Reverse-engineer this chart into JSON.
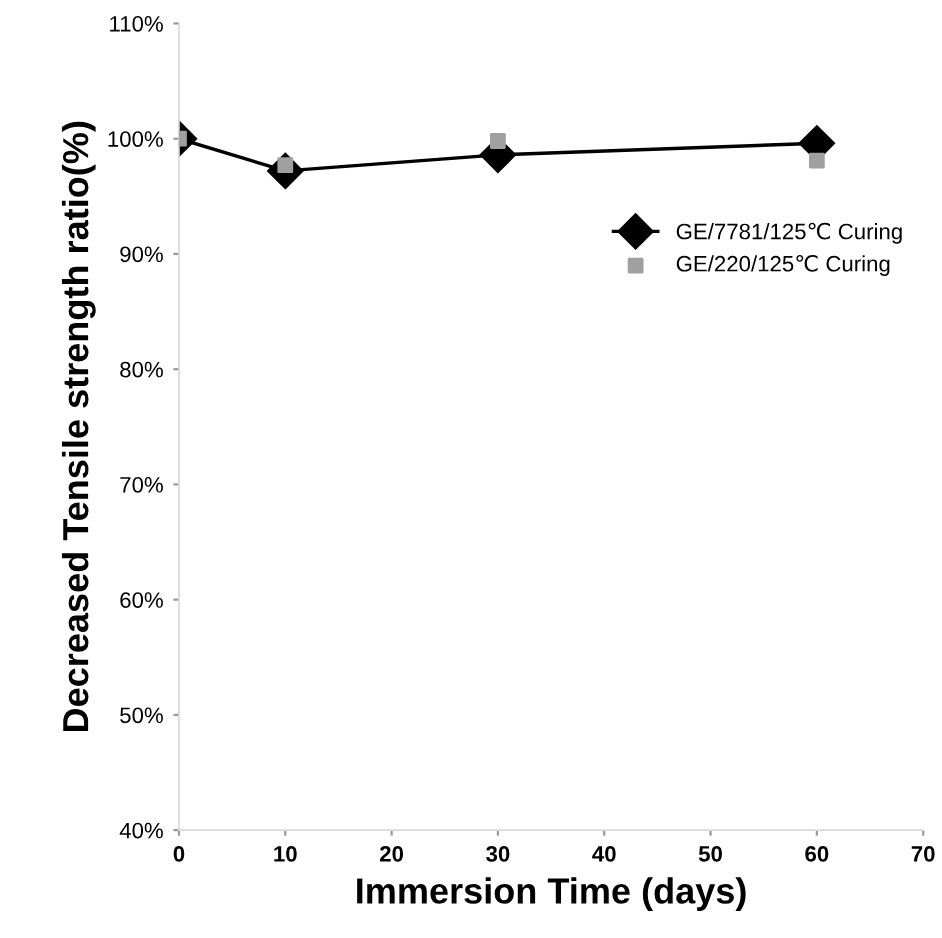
{
  "chart_data": {
    "type": "line",
    "xlabel": "Immersion Time (days)",
    "ylabel": "Decreased Tensile strength ratio(%)",
    "x": [
      0,
      10,
      30,
      60
    ],
    "series": [
      {
        "name": "GE/7781/125℃ Curing",
        "color": "#000000",
        "values": [
          100,
          97.2,
          98.6,
          99.6
        ],
        "marker": "diamond",
        "line_style": "solid"
      },
      {
        "name": "GE/220/125℃ Curing",
        "color": "#a0a0a0",
        "type": "scatter",
        "values": [
          100,
          97.7,
          99.8,
          98.1
        ],
        "marker": "square"
      }
    ],
    "xlim": [
      0,
      70
    ],
    "xticks": [
      0,
      10,
      20,
      30,
      40,
      50,
      60,
      70
    ],
    "ylim": [
      40,
      110
    ],
    "yticks": [
      {
        "value": 40,
        "label": "40%"
      },
      {
        "value": 50,
        "label": "50%"
      },
      {
        "value": 60,
        "label": "60%"
      },
      {
        "value": 70,
        "label": "70%"
      },
      {
        "value": 80,
        "label": "80%"
      },
      {
        "value": 90,
        "label": "90%"
      },
      {
        "value": 100,
        "label": "100%"
      },
      {
        "value": 110,
        "label": "110%"
      }
    ],
    "grid": false,
    "legend": "right"
  }
}
